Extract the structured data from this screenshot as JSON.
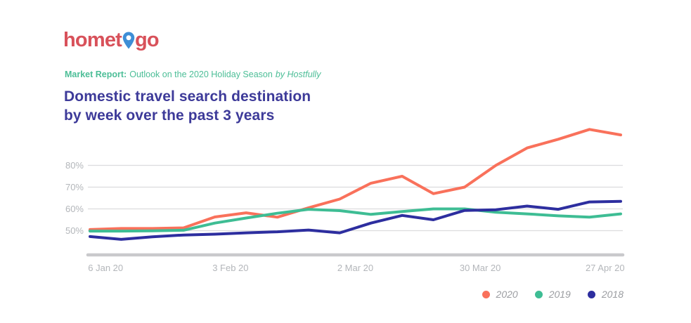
{
  "logo": {
    "text_before_pin": "homet",
    "text_after_pin": "go"
  },
  "subtitle": {
    "bold": "Market Report:",
    "regular": "Outlook on the 2020 Holiday Season",
    "italic": "by Hostfully"
  },
  "title": {
    "line1": "Domestic travel search destination",
    "line2": "by week over the past 3 years"
  },
  "chart_data": {
    "type": "line",
    "title": "Domestic travel search destination by week over the past 3 years",
    "x_unit": "week",
    "n_points": 18,
    "x_tick_labels": [
      "6 Jan 20",
      "3 Feb 20",
      "2 Mar 20",
      "30 Mar 20",
      "27 Apr 20"
    ],
    "x_tick_point_positions": [
      0.5,
      4.5,
      8.5,
      12.5,
      16.5
    ],
    "y_ticks": [
      50,
      60,
      70,
      80
    ],
    "y_tick_format": "{v}%",
    "ylim": [
      39,
      100
    ],
    "grid": "horizontal-only",
    "legend_position": "bottom-right",
    "series": [
      {
        "name": "2020",
        "color": "#F9715B",
        "values": [
          50.5,
          51,
          51,
          51.3,
          56.3,
          58.2,
          56.2,
          60.5,
          64.5,
          71.8,
          75,
          67,
          70,
          80,
          88,
          92,
          96.5,
          94
        ]
      },
      {
        "name": "2019",
        "color": "#3EBD94",
        "values": [
          49.8,
          49.8,
          49.9,
          50.2,
          53.5,
          55.8,
          58,
          59.8,
          59.2,
          57.5,
          58.8,
          60,
          60,
          58.5,
          57.7,
          56.8,
          56.2,
          57.7
        ]
      },
      {
        "name": "2018",
        "color": "#2D2E9F",
        "values": [
          47.3,
          46,
          47.2,
          48,
          48.4,
          49,
          49.5,
          50.3,
          49,
          53.5,
          57,
          55,
          59.3,
          59.6,
          61.3,
          59.8,
          63.2,
          63.5
        ]
      }
    ]
  },
  "colors": {
    "logo_red": "#D8515A",
    "pin_blue": "#3E8ED6",
    "title_indigo": "#3D3A99",
    "subtitle_teal": "#4CBE97",
    "axis_text": "#B3B6BA",
    "gridline": "#DCDCDD",
    "axis_line": "#C9C9CC",
    "legend_text": "#9B9DA1"
  }
}
